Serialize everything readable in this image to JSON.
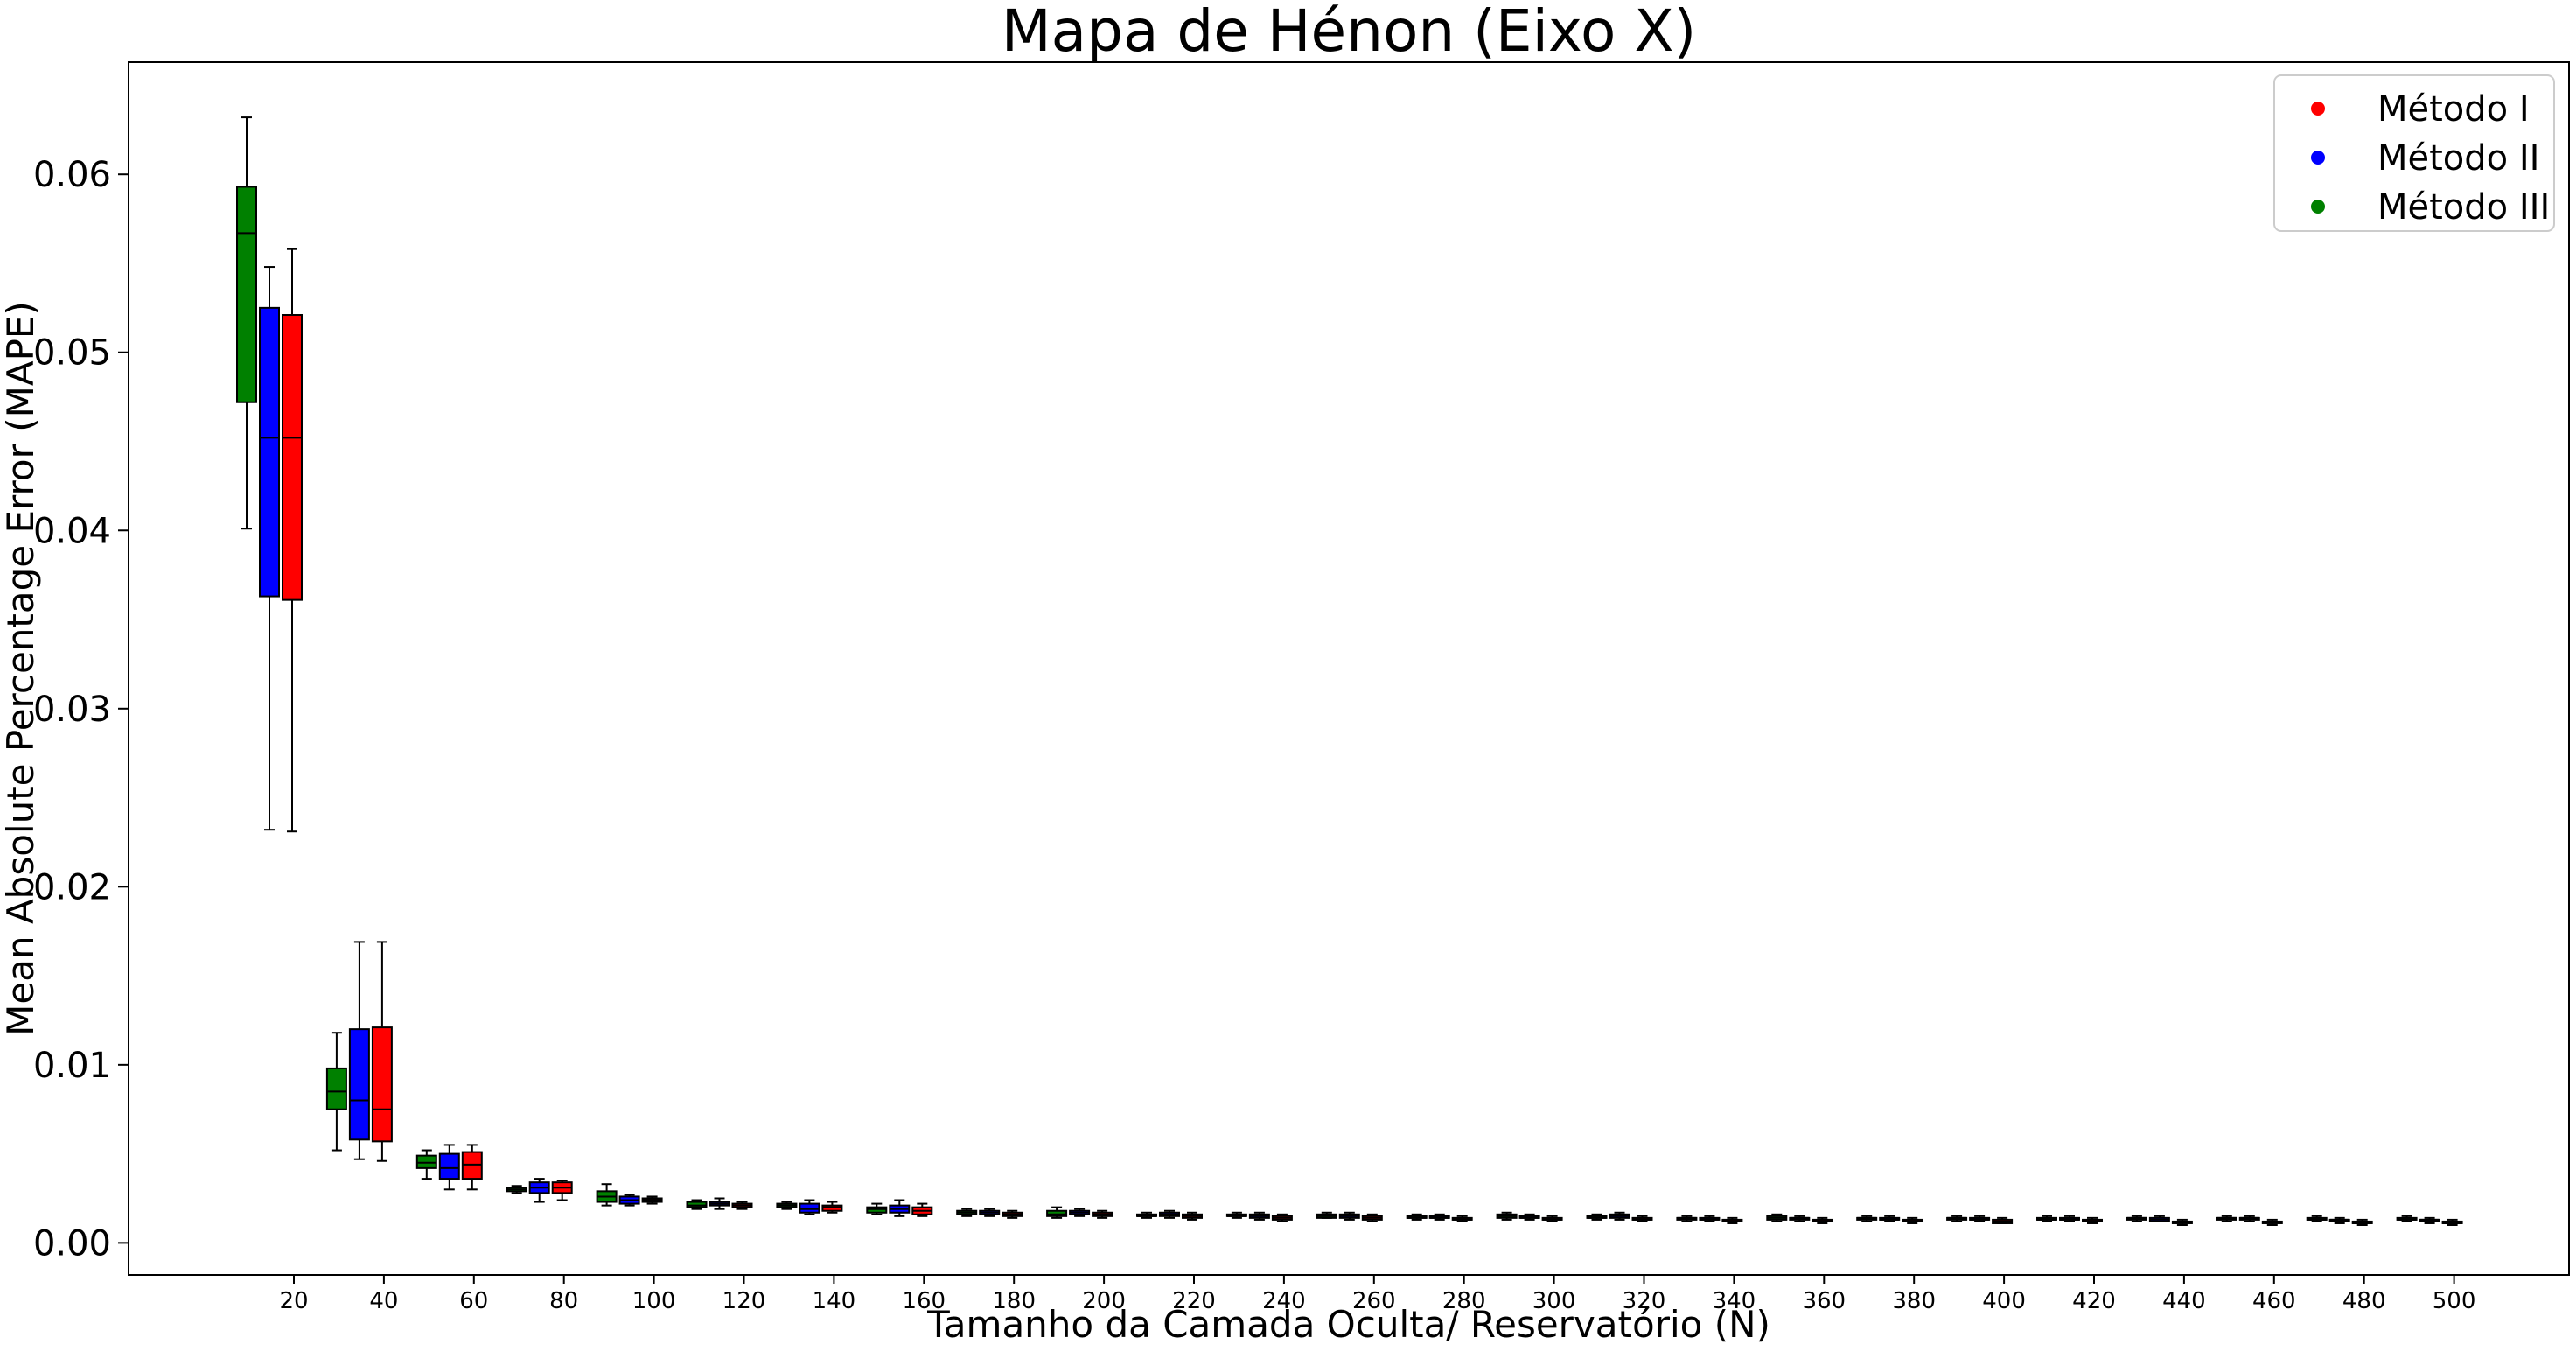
{
  "chart_data": {
    "type": "box",
    "title": "Mapa de Hénon (Eixo X)",
    "xlabel": "Tamanho da Camada Oculta/ Reservatório (N)",
    "ylabel": "Mean Absolute Percentage Error (MAPE)",
    "ylim": [
      -0.0018,
      0.0663
    ],
    "yticks": [
      "0.00",
      "0.01",
      "0.02",
      "0.03",
      "0.04",
      "0.05",
      "0.06"
    ],
    "categories": [
      "20",
      "40",
      "60",
      "80",
      "100",
      "120",
      "140",
      "160",
      "180",
      "200",
      "220",
      "240",
      "260",
      "280",
      "300",
      "320",
      "340",
      "360",
      "380",
      "400",
      "420",
      "440",
      "460",
      "480",
      "500"
    ],
    "legend_position": "upper right",
    "series": [
      {
        "name": "Método III",
        "color": "#008000",
        "boxes": [
          {
            "whislo": 0.0401,
            "q1": 0.0472,
            "med": 0.0567,
            "q3": 0.0593,
            "whishi": 0.0632
          },
          {
            "whislo": 0.0052,
            "q1": 0.0075,
            "med": 0.0085,
            "q3": 0.0098,
            "whishi": 0.0118
          },
          {
            "whislo": 0.0036,
            "q1": 0.0042,
            "med": 0.0045,
            "q3": 0.0049,
            "whishi": 0.0052
          },
          {
            "whislo": 0.0028,
            "q1": 0.0029,
            "med": 0.003,
            "q3": 0.0031,
            "whishi": 0.0032
          },
          {
            "whislo": 0.0021,
            "q1": 0.0023,
            "med": 0.0026,
            "q3": 0.0029,
            "whishi": 0.0033
          },
          {
            "whislo": 0.0019,
            "q1": 0.002,
            "med": 0.0021,
            "q3": 0.0023,
            "whishi": 0.0024
          },
          {
            "whislo": 0.0019,
            "q1": 0.002,
            "med": 0.0021,
            "q3": 0.0022,
            "whishi": 0.0023
          },
          {
            "whislo": 0.0016,
            "q1": 0.0017,
            "med": 0.0019,
            "q3": 0.002,
            "whishi": 0.0022
          },
          {
            "whislo": 0.0015,
            "q1": 0.0016,
            "med": 0.0017,
            "q3": 0.0018,
            "whishi": 0.0019
          },
          {
            "whislo": 0.0014,
            "q1": 0.0015,
            "med": 0.0016,
            "q3": 0.0018,
            "whishi": 0.002
          },
          {
            "whislo": 0.0014,
            "q1": 0.0015,
            "med": 0.0015,
            "q3": 0.0016,
            "whishi": 0.0017
          },
          {
            "whislo": 0.0014,
            "q1": 0.0015,
            "med": 0.0015,
            "q3": 0.0016,
            "whishi": 0.0017
          },
          {
            "whislo": 0.0014,
            "q1": 0.0014,
            "med": 0.0015,
            "q3": 0.0016,
            "whishi": 0.0017
          },
          {
            "whislo": 0.0013,
            "q1": 0.0014,
            "med": 0.0014,
            "q3": 0.0015,
            "whishi": 0.0016
          },
          {
            "whislo": 0.0013,
            "q1": 0.0014,
            "med": 0.0015,
            "q3": 0.0016,
            "whishi": 0.0017
          },
          {
            "whislo": 0.0013,
            "q1": 0.0014,
            "med": 0.0014,
            "q3": 0.0015,
            "whishi": 0.0016
          },
          {
            "whislo": 0.0012,
            "q1": 0.0013,
            "med": 0.0014,
            "q3": 0.0014,
            "whishi": 0.0015
          },
          {
            "whislo": 0.0012,
            "q1": 0.0013,
            "med": 0.0014,
            "q3": 0.0015,
            "whishi": 0.0016
          },
          {
            "whislo": 0.0012,
            "q1": 0.0013,
            "med": 0.0014,
            "q3": 0.0014,
            "whishi": 0.0015
          },
          {
            "whislo": 0.0012,
            "q1": 0.0013,
            "med": 0.0014,
            "q3": 0.0014,
            "whishi": 0.0015
          },
          {
            "whislo": 0.0012,
            "q1": 0.0013,
            "med": 0.0013,
            "q3": 0.0014,
            "whishi": 0.0015
          },
          {
            "whislo": 0.0012,
            "q1": 0.0013,
            "med": 0.0014,
            "q3": 0.0014,
            "whishi": 0.0015
          },
          {
            "whislo": 0.0012,
            "q1": 0.0013,
            "med": 0.0014,
            "q3": 0.0014,
            "whishi": 0.0015
          },
          {
            "whislo": 0.0012,
            "q1": 0.0013,
            "med": 0.0013,
            "q3": 0.0014,
            "whishi": 0.0015
          },
          {
            "whislo": 0.0012,
            "q1": 0.0013,
            "med": 0.0013,
            "q3": 0.0014,
            "whishi": 0.0015
          }
        ]
      },
      {
        "name": "Método II",
        "color": "#0000ff",
        "boxes": [
          {
            "whislo": 0.0232,
            "q1": 0.0363,
            "med": 0.0452,
            "q3": 0.0525,
            "whishi": 0.0548
          },
          {
            "whislo": 0.0047,
            "q1": 0.0058,
            "med": 0.008,
            "q3": 0.012,
            "whishi": 0.0169
          },
          {
            "whislo": 0.003,
            "q1": 0.0036,
            "med": 0.0042,
            "q3": 0.005,
            "whishi": 0.0055
          },
          {
            "whislo": 0.0023,
            "q1": 0.0028,
            "med": 0.0031,
            "q3": 0.0034,
            "whishi": 0.0036
          },
          {
            "whislo": 0.0021,
            "q1": 0.0022,
            "med": 0.0024,
            "q3": 0.0026,
            "whishi": 0.0027
          },
          {
            "whislo": 0.0019,
            "q1": 0.0021,
            "med": 0.0022,
            "q3": 0.0023,
            "whishi": 0.0025
          },
          {
            "whislo": 0.0016,
            "q1": 0.0017,
            "med": 0.0019,
            "q3": 0.0022,
            "whishi": 0.0024
          },
          {
            "whislo": 0.0015,
            "q1": 0.0017,
            "med": 0.0019,
            "q3": 0.0021,
            "whishi": 0.0024
          },
          {
            "whislo": 0.0015,
            "q1": 0.0016,
            "med": 0.0017,
            "q3": 0.0018,
            "whishi": 0.0019
          },
          {
            "whislo": 0.0015,
            "q1": 0.0016,
            "med": 0.0017,
            "q3": 0.0018,
            "whishi": 0.0019
          },
          {
            "whislo": 0.0014,
            "q1": 0.0015,
            "med": 0.0016,
            "q3": 0.0017,
            "whishi": 0.0018
          },
          {
            "whislo": 0.0013,
            "q1": 0.0014,
            "med": 0.0015,
            "q3": 0.0016,
            "whishi": 0.0017
          },
          {
            "whislo": 0.0013,
            "q1": 0.0014,
            "med": 0.0015,
            "q3": 0.0016,
            "whishi": 0.0017
          },
          {
            "whislo": 0.0013,
            "q1": 0.0014,
            "med": 0.0014,
            "q3": 0.0015,
            "whishi": 0.0016
          },
          {
            "whislo": 0.0013,
            "q1": 0.0014,
            "med": 0.0014,
            "q3": 0.0015,
            "whishi": 0.0016
          },
          {
            "whislo": 0.0013,
            "q1": 0.0014,
            "med": 0.0015,
            "q3": 0.0016,
            "whishi": 0.0017
          },
          {
            "whislo": 0.0012,
            "q1": 0.0013,
            "med": 0.0013,
            "q3": 0.0014,
            "whishi": 0.0015
          },
          {
            "whislo": 0.0012,
            "q1": 0.0013,
            "med": 0.0014,
            "q3": 0.0014,
            "whishi": 0.0015
          },
          {
            "whislo": 0.0012,
            "q1": 0.0013,
            "med": 0.0013,
            "q3": 0.0014,
            "whishi": 0.0015
          },
          {
            "whislo": 0.0012,
            "q1": 0.0013,
            "med": 0.0013,
            "q3": 0.0014,
            "whishi": 0.0015
          },
          {
            "whislo": 0.0012,
            "q1": 0.0013,
            "med": 0.0013,
            "q3": 0.0014,
            "whishi": 0.0015
          },
          {
            "whislo": 0.0012,
            "q1": 0.0012,
            "med": 0.0013,
            "q3": 0.0014,
            "whishi": 0.0015
          },
          {
            "whislo": 0.0012,
            "q1": 0.0013,
            "med": 0.0014,
            "q3": 0.0014,
            "whishi": 0.0015
          },
          {
            "whislo": 0.0011,
            "q1": 0.0012,
            "med": 0.0013,
            "q3": 0.0013,
            "whishi": 0.0014
          },
          {
            "whislo": 0.0011,
            "q1": 0.0012,
            "med": 0.0013,
            "q3": 0.0013,
            "whishi": 0.0014
          }
        ]
      },
      {
        "name": "Método I",
        "color": "#ff0000",
        "boxes": [
          {
            "whislo": 0.0231,
            "q1": 0.0361,
            "med": 0.0452,
            "q3": 0.0521,
            "whishi": 0.0558
          },
          {
            "whislo": 0.0046,
            "q1": 0.0057,
            "med": 0.0075,
            "q3": 0.0121,
            "whishi": 0.0169
          },
          {
            "whislo": 0.003,
            "q1": 0.0036,
            "med": 0.0044,
            "q3": 0.0051,
            "whishi": 0.0055
          },
          {
            "whislo": 0.0024,
            "q1": 0.0028,
            "med": 0.0031,
            "q3": 0.0034,
            "whishi": 0.0035
          },
          {
            "whislo": 0.0022,
            "q1": 0.0023,
            "med": 0.0024,
            "q3": 0.0025,
            "whishi": 0.0026
          },
          {
            "whislo": 0.0019,
            "q1": 0.002,
            "med": 0.0021,
            "q3": 0.0022,
            "whishi": 0.0023
          },
          {
            "whislo": 0.0017,
            "q1": 0.0018,
            "med": 0.002,
            "q3": 0.0021,
            "whishi": 0.0023
          },
          {
            "whislo": 0.0015,
            "q1": 0.0016,
            "med": 0.0018,
            "q3": 0.002,
            "whishi": 0.0022
          },
          {
            "whislo": 0.0014,
            "q1": 0.0015,
            "med": 0.0016,
            "q3": 0.0017,
            "whishi": 0.0018
          },
          {
            "whislo": 0.0014,
            "q1": 0.0015,
            "med": 0.0016,
            "q3": 0.0017,
            "whishi": 0.0018
          },
          {
            "whislo": 0.0013,
            "q1": 0.0014,
            "med": 0.0015,
            "q3": 0.0016,
            "whishi": 0.0017
          },
          {
            "whislo": 0.0012,
            "q1": 0.0013,
            "med": 0.0014,
            "q3": 0.0015,
            "whishi": 0.0016
          },
          {
            "whislo": 0.0012,
            "q1": 0.0013,
            "med": 0.0014,
            "q3": 0.0015,
            "whishi": 0.0016
          },
          {
            "whislo": 0.0012,
            "q1": 0.0013,
            "med": 0.0013,
            "q3": 0.0014,
            "whishi": 0.0015
          },
          {
            "whislo": 0.0012,
            "q1": 0.0013,
            "med": 0.0013,
            "q3": 0.0014,
            "whishi": 0.0015
          },
          {
            "whislo": 0.0012,
            "q1": 0.0013,
            "med": 0.0013,
            "q3": 0.0014,
            "whishi": 0.0015
          },
          {
            "whislo": 0.0011,
            "q1": 0.0012,
            "med": 0.0012,
            "q3": 0.0013,
            "whishi": 0.0014
          },
          {
            "whislo": 0.0011,
            "q1": 0.0012,
            "med": 0.0012,
            "q3": 0.0013,
            "whishi": 0.0014
          },
          {
            "whislo": 0.0011,
            "q1": 0.0012,
            "med": 0.0012,
            "q3": 0.0013,
            "whishi": 0.0014
          },
          {
            "whislo": 0.0011,
            "q1": 0.0011,
            "med": 0.0012,
            "q3": 0.0013,
            "whishi": 0.0014
          },
          {
            "whislo": 0.0011,
            "q1": 0.0012,
            "med": 0.0012,
            "q3": 0.0013,
            "whishi": 0.0014
          },
          {
            "whislo": 0.001,
            "q1": 0.0011,
            "med": 0.0012,
            "q3": 0.0012,
            "whishi": 0.0013
          },
          {
            "whislo": 0.001,
            "q1": 0.0011,
            "med": 0.0012,
            "q3": 0.0012,
            "whishi": 0.0013
          },
          {
            "whislo": 0.001,
            "q1": 0.0011,
            "med": 0.0011,
            "q3": 0.0012,
            "whishi": 0.0013
          },
          {
            "whislo": 0.001,
            "q1": 0.0011,
            "med": 0.0011,
            "q3": 0.0012,
            "whishi": 0.0013
          }
        ]
      }
    ],
    "legend": [
      {
        "label": "Método I",
        "color": "#ff0000"
      },
      {
        "label": "Método II",
        "color": "#0000ff"
      },
      {
        "label": "Método III",
        "color": "#008000"
      }
    ]
  }
}
